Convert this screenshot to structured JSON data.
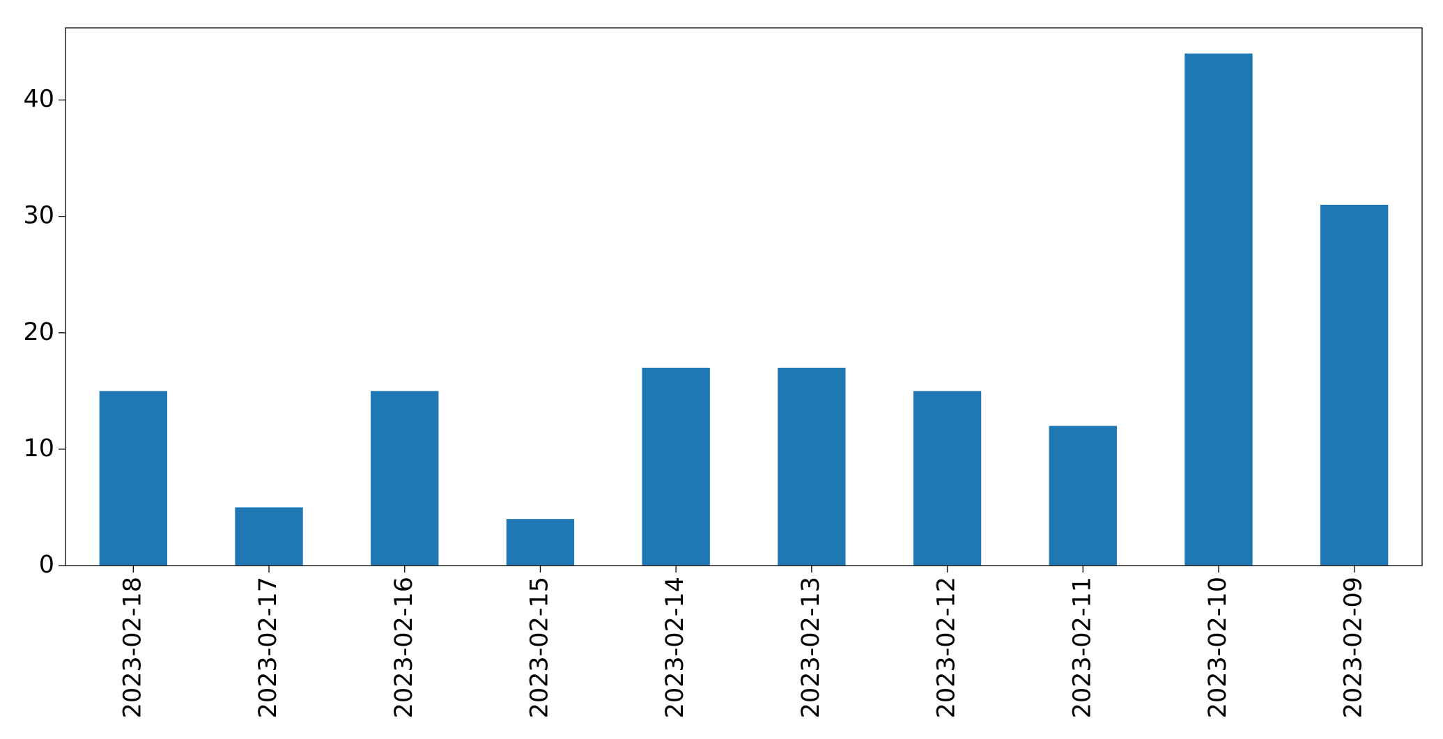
{
  "chart_data": {
    "type": "bar",
    "categories": [
      "2023-02-18",
      "2023-02-17",
      "2023-02-16",
      "2023-02-15",
      "2023-02-14",
      "2023-02-13",
      "2023-02-12",
      "2023-02-11",
      "2023-02-10",
      "2023-02-09"
    ],
    "values": [
      15,
      5,
      15,
      4,
      17,
      17,
      15,
      12,
      44,
      31
    ],
    "color": "#1f77b4",
    "ylim": [
      0,
      46.2
    ],
    "yticks": [
      0,
      10,
      20,
      30,
      40
    ],
    "grid": false
  }
}
